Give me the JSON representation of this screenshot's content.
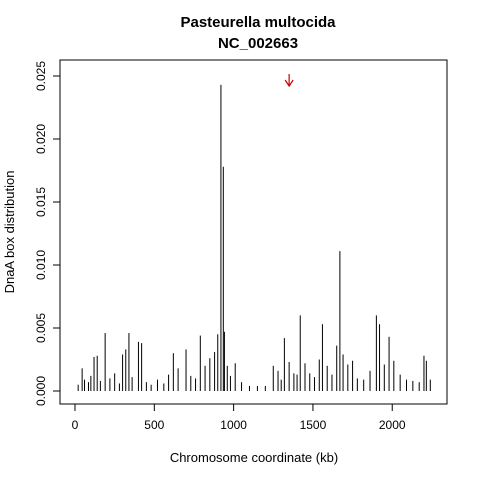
{
  "chart_data": {
    "type": "bar",
    "title": "Pasteurella multocida",
    "subtitle": "NC_002663",
    "xlabel": "Chromosome coordinate (kb)",
    "ylabel": "DnaA box distribution",
    "xlim": [
      0,
      2257
    ],
    "ylim": [
      0,
      0.025
    ],
    "x_ticks": [
      0,
      500,
      1000,
      1500,
      2000
    ],
    "y_ticks": [
      0.0,
      0.005,
      0.01,
      0.015,
      0.02,
      0.025
    ],
    "x_tick_labels": [
      "0",
      "500",
      "1000",
      "1500",
      "2000"
    ],
    "y_tick_labels": [
      "0.000",
      "0.005",
      "0.010",
      "0.015",
      "0.020",
      "0.025"
    ],
    "grid": false,
    "annotation": {
      "type": "arrow",
      "x": 1350,
      "color": "#cc0000"
    },
    "series": [
      {
        "color": "#000000",
        "x": [
          20,
          45,
          60,
          85,
          100,
          120,
          140,
          160,
          190,
          220,
          250,
          280,
          300,
          320,
          340,
          360,
          400,
          420,
          450,
          480,
          520,
          560,
          590,
          620,
          650,
          700,
          730,
          760,
          790,
          820,
          850,
          880,
          900,
          920,
          935,
          942,
          960,
          980,
          1010,
          1050,
          1100,
          1150,
          1200,
          1250,
          1280,
          1300,
          1320,
          1350,
          1380,
          1400,
          1420,
          1450,
          1480,
          1510,
          1540,
          1560,
          1590,
          1620,
          1650,
          1670,
          1690,
          1720,
          1750,
          1780,
          1820,
          1860,
          1900,
          1920,
          1950,
          1980,
          2010,
          2050,
          2090,
          2130,
          2170,
          2200,
          2215,
          2240
        ],
        "values": [
          0.0005,
          0.0018,
          0.0009,
          0.0007,
          0.0012,
          0.0027,
          0.0028,
          0.0008,
          0.0046,
          0.001,
          0.0014,
          0.0006,
          0.0029,
          0.0033,
          0.0046,
          0.0011,
          0.0039,
          0.0038,
          0.0007,
          0.0005,
          0.0009,
          0.0006,
          0.0013,
          0.003,
          0.0018,
          0.0033,
          0.0012,
          0.001,
          0.0044,
          0.002,
          0.0026,
          0.0031,
          0.0045,
          0.0243,
          0.0178,
          0.0047,
          0.002,
          0.0012,
          0.0022,
          0.0007,
          0.0004,
          0.0004,
          0.0004,
          0.002,
          0.0016,
          0.0009,
          0.0042,
          0.0023,
          0.0014,
          0.0013,
          0.006,
          0.0022,
          0.0014,
          0.0011,
          0.0025,
          0.0053,
          0.002,
          0.0013,
          0.0036,
          0.0111,
          0.0029,
          0.0021,
          0.0024,
          0.001,
          0.0009,
          0.0016,
          0.006,
          0.0053,
          0.0021,
          0.0043,
          0.0024,
          0.0013,
          0.0009,
          0.0008,
          0.0007,
          0.0028,
          0.0024,
          0.0009
        ]
      }
    ]
  }
}
